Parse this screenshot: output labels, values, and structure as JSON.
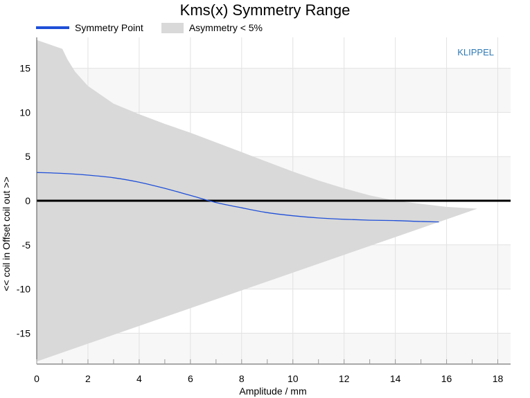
{
  "chart_data": {
    "type": "area",
    "title": "Kms(x) Symmetry Range",
    "xlabel": "Amplitude / mm",
    "ylabel": "<< coil in Offset coil out >>",
    "watermark": "KLIPPEL",
    "xlim": [
      0,
      18.5
    ],
    "ylim": [
      -18.5,
      18.5
    ],
    "xticks": [
      0,
      2,
      4,
      6,
      8,
      10,
      12,
      14,
      16,
      18
    ],
    "yticks": [
      -15,
      -10,
      -5,
      0,
      5,
      10,
      15
    ],
    "grid": true,
    "legend_position": "top-left",
    "series": [
      {
        "name": "Symmetry Point",
        "kind": "line",
        "color": "#1f4fd8",
        "x": [
          0,
          1,
          2,
          3,
          4,
          5,
          6,
          7,
          8,
          9,
          10,
          11,
          12,
          13,
          14,
          15,
          15.7
        ],
        "y": [
          3.2,
          3.1,
          2.9,
          2.6,
          2.1,
          1.4,
          0.6,
          -0.2,
          -0.8,
          -1.35,
          -1.7,
          -1.95,
          -2.1,
          -2.2,
          -2.25,
          -2.35,
          -2.4
        ]
      },
      {
        "name": "Asymmetry < 5%",
        "kind": "range",
        "color": "#d9d9d9",
        "upper": {
          "x": [
            0,
            1,
            1.2,
            1.5,
            2,
            3,
            4,
            5,
            6,
            7,
            8,
            9,
            10,
            11,
            12,
            13,
            14,
            15,
            16,
            17.2
          ],
          "y": [
            18.2,
            17.2,
            16.0,
            14.6,
            13.0,
            11.0,
            9.8,
            8.7,
            7.7,
            6.6,
            5.5,
            4.4,
            3.3,
            2.3,
            1.4,
            0.6,
            0.0,
            -0.35,
            -0.7,
            -0.9
          ]
        },
        "lower": {
          "x": [
            0,
            17.2
          ],
          "y": [
            -18.2,
            -0.9
          ]
        }
      }
    ],
    "reference_line": {
      "y": 0,
      "color": "#000000"
    }
  }
}
